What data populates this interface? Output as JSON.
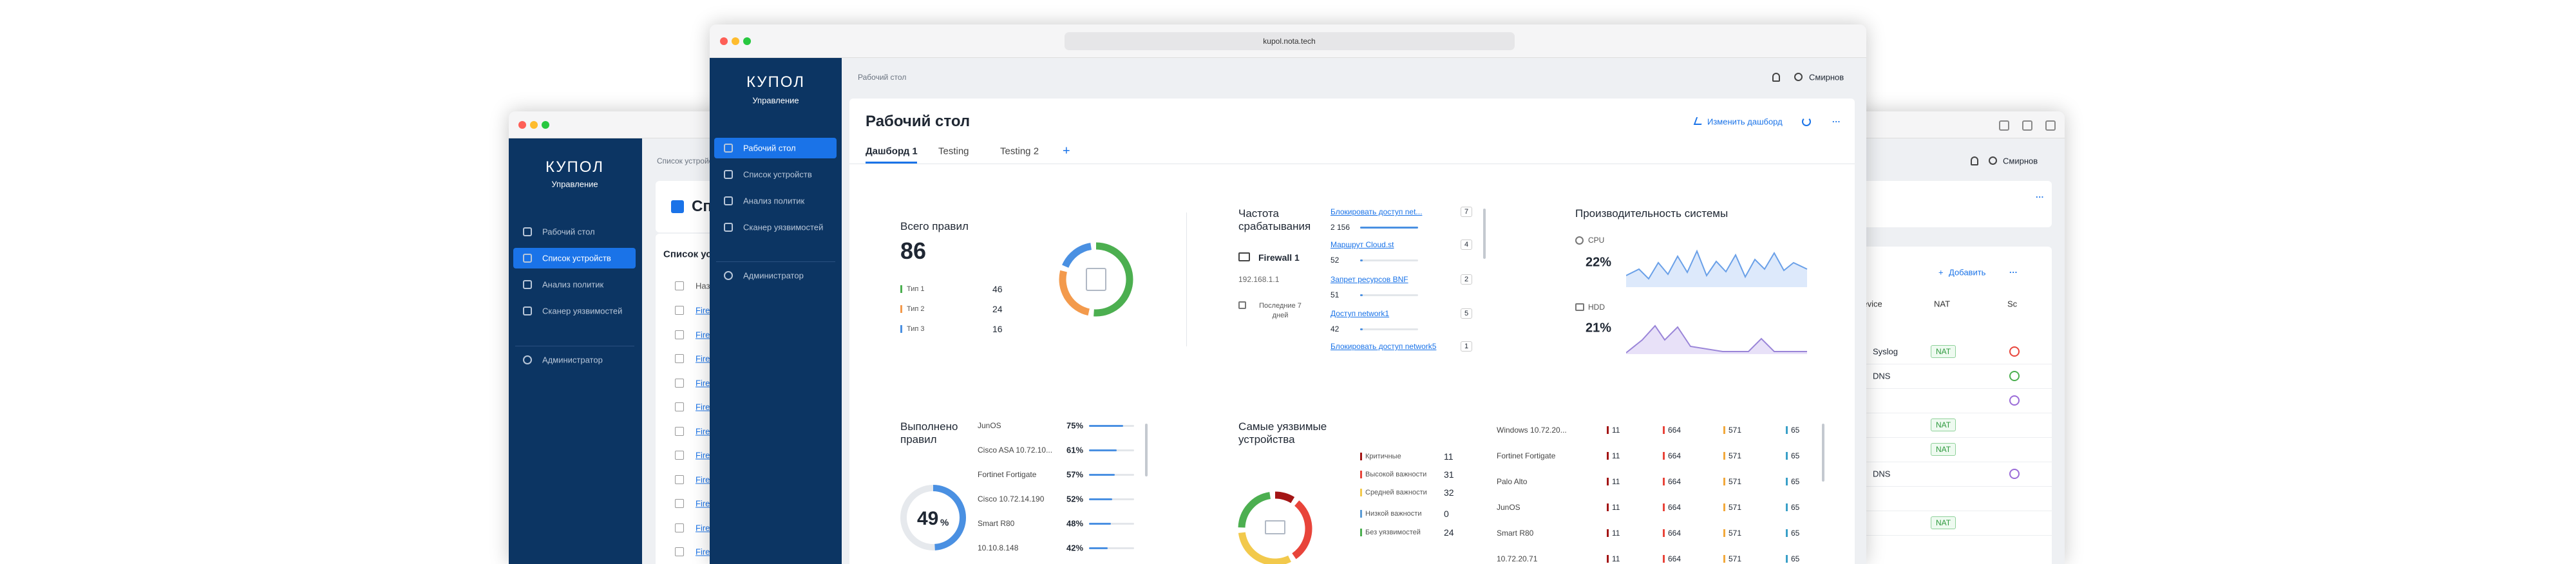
{
  "back_left_window": {
    "brand": "КУПОЛ",
    "brand_subtitle": "Управление",
    "nav": [
      "Рабочий стол",
      "Список устройств",
      "Анализ политик",
      "Сканер уязвимостей"
    ],
    "admin": "Администратор",
    "breadcrumb": "Список устройств",
    "page_title": "Список устройств",
    "card_title": "Список устройств",
    "table_header": "Название",
    "rows": [
      "Firewall",
      "Firewall",
      "Firewall",
      "Firewall",
      "Firewall",
      "Firewall",
      "Firewall",
      "Firewall",
      "Firewall",
      "Firewall",
      "Firewall"
    ]
  },
  "back_right_window": {
    "user": "Смирнов",
    "add_button": "Добавить",
    "headers": [
      "Device",
      "NAT",
      "Sc"
    ],
    "rows": [
      {
        "service": "Syslog",
        "nat": "NAT"
      },
      {
        "service": "DNS"
      },
      {},
      {
        "nat": "NAT"
      },
      {
        "nat": "NAT"
      },
      {
        "service": "DNS"
      },
      {},
      {
        "nat": "NAT"
      }
    ]
  },
  "main_window": {
    "url": "kupol.nota.tech",
    "brand": "КУПОЛ",
    "brand_subtitle": "Управление",
    "nav": [
      "Рабочий стол",
      "Список устройств",
      "Анализ политик",
      "Сканер уязвимостей"
    ],
    "admin": "Администратор",
    "breadcrumb": "Рабочий стол",
    "user": "Смирнов",
    "page_title": "Рабочий стол",
    "edit_button": "Изменить дашборд",
    "tabs": [
      "Дашборд 1",
      "Testing",
      "Testing 2"
    ],
    "rules_widget": {
      "title": "Всего правил",
      "total": 86,
      "items": [
        {
          "label": "Тип 1",
          "value": 46,
          "color": "#4caf50"
        },
        {
          "label": "Тип 2",
          "value": 24,
          "color": "#f39a4c"
        },
        {
          "label": "Тип 3",
          "value": 16,
          "color": "#4a90e2"
        }
      ]
    },
    "frequency_widget": {
      "title": "Частота срабатывания",
      "device": "Firewall 1",
      "ip": "192.168.1.1",
      "period": "Последние 7 дней",
      "rules": [
        {
          "name": "Блокировать доступ net...",
          "count": 2156,
          "count_label": "2 156",
          "badge": 7
        },
        {
          "name": "Маршрут Cloud.st",
          "count": 52,
          "badge": 4
        },
        {
          "name": "Запрет ресурсов BNF",
          "count": 51,
          "badge": 2
        },
        {
          "name": "Доступ network1",
          "count": 42,
          "badge": 5
        },
        {
          "name": "Блокировать доступ network5",
          "badge": 1
        }
      ]
    },
    "performance_widget": {
      "title": "Производительность системы",
      "cpu_label": "CPU",
      "cpu_value": "22%",
      "hdd_label": "HDD",
      "hdd_value": "21%"
    },
    "executed_widget": {
      "title": "Выполнено правил",
      "percent": 49,
      "percent_unit": "%",
      "items": [
        {
          "label": "JunOS",
          "value": 75,
          "value_label": "75%"
        },
        {
          "label": "Cisco ASA 10.72.10...",
          "value": 61,
          "value_label": "61%"
        },
        {
          "label": "Fortinet Fortigate",
          "value": 57,
          "value_label": "57%"
        },
        {
          "label": "Cisco 10.72.14.190",
          "value": 52,
          "value_label": "52%"
        },
        {
          "label": "Smart R80",
          "value": 48,
          "value_label": "48%"
        },
        {
          "label": "10.10.8.148",
          "value": 42,
          "value_label": "42%"
        }
      ]
    },
    "vulnerable_widget": {
      "title": "Самые уязвимые устройства",
      "legend": [
        {
          "label": "Критичные",
          "value": 11,
          "color": "#a31515"
        },
        {
          "label": "Высокой важности",
          "value": 31,
          "color": "#e8443a"
        },
        {
          "label": "Средней важности",
          "value": 32,
          "color": "#f2c94c"
        },
        {
          "label": "Низкой важности",
          "value": 0,
          "color": "#5b9bd5"
        },
        {
          "label": "Без уязвимостей",
          "value": 24,
          "color": "#4caf50"
        }
      ],
      "column_colors": [
        "#a31515",
        "#e8443a",
        "#f2a93c",
        "#3aa0c8"
      ],
      "rows": [
        {
          "name": "Windows 10.72.20...",
          "values": [
            11,
            664,
            571,
            65
          ]
        },
        {
          "name": "Fortinet Fortigate",
          "values": [
            11,
            664,
            571,
            65
          ]
        },
        {
          "name": "Palo Alto",
          "values": [
            11,
            664,
            571,
            65
          ]
        },
        {
          "name": "JunOS",
          "values": [
            11,
            664,
            571,
            65
          ]
        },
        {
          "name": "Smart R80",
          "values": [
            11,
            664,
            571,
            65
          ]
        },
        {
          "name": "10.72.20.71",
          "values": [
            11,
            664,
            571,
            65
          ]
        }
      ]
    }
  }
}
